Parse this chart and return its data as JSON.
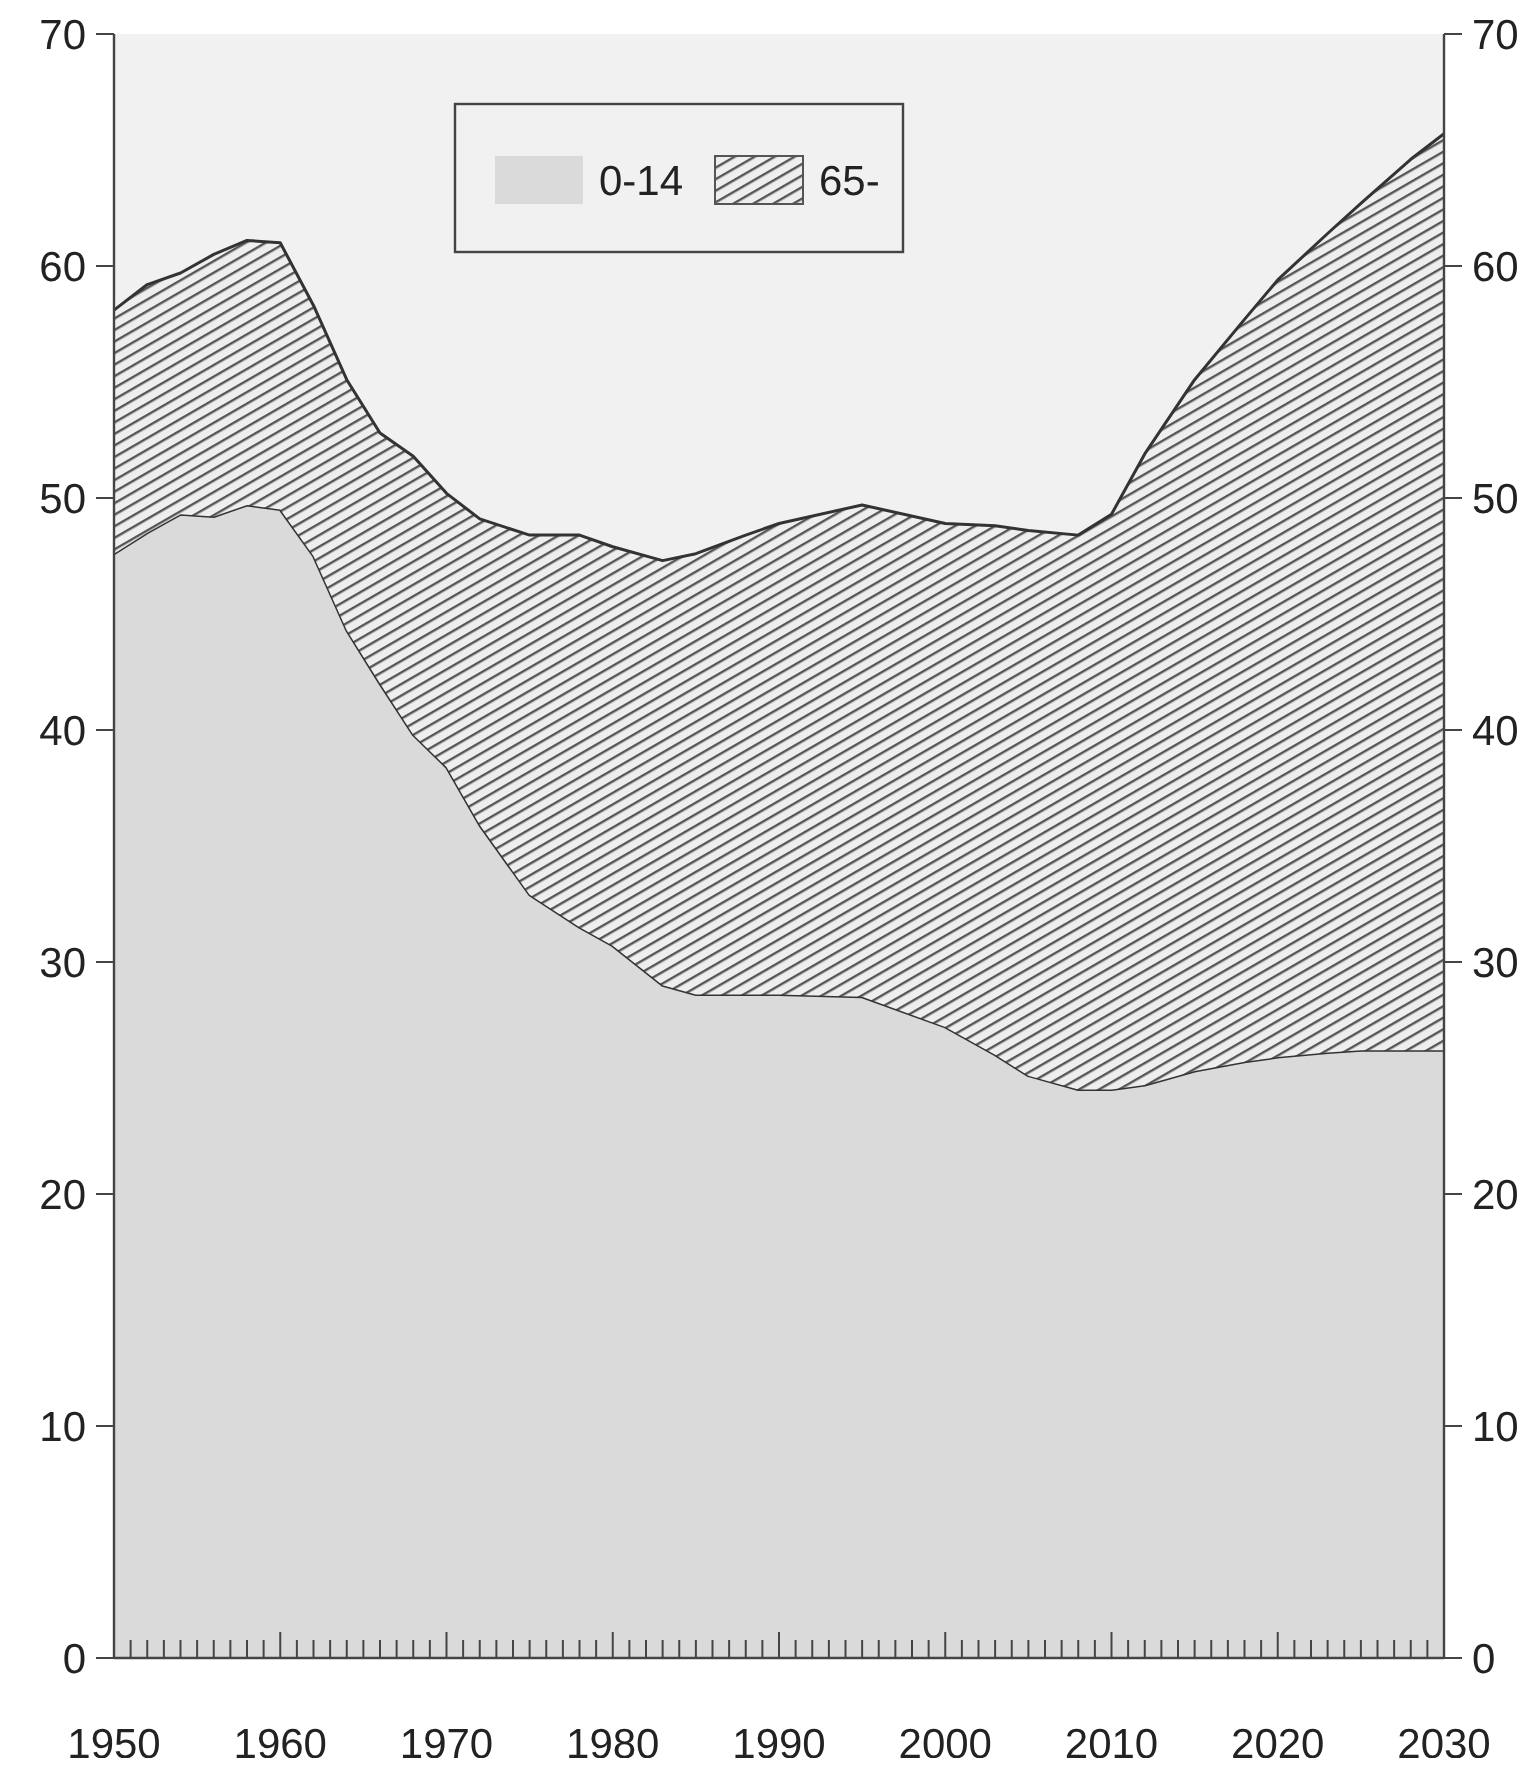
{
  "chart_data": {
    "type": "area",
    "stacked": true,
    "legend": "top",
    "x": [
      1950,
      1952,
      1954,
      1956,
      1958,
      1960,
      1962,
      1964,
      1966,
      1968,
      1970,
      1972,
      1975,
      1978,
      1980,
      1983,
      1985,
      1988,
      1990,
      1995,
      2000,
      2003,
      2005,
      2008,
      2010,
      2012,
      2015,
      2018,
      2020,
      2023,
      2025,
      2028,
      2030
    ],
    "series": [
      {
        "name": "0-14",
        "color": "#dadada",
        "values": [
          47.6,
          48.5,
          49.3,
          49.2,
          49.7,
          49.5,
          47.5,
          44.3,
          42.0,
          39.8,
          38.4,
          35.9,
          32.9,
          31.5,
          30.7,
          29.0,
          28.6,
          28.6,
          28.6,
          28.5,
          27.2,
          26.0,
          25.1,
          24.5,
          24.5,
          24.7,
          25.3,
          25.7,
          25.9,
          26.1,
          26.2,
          26.2,
          26.2
        ]
      },
      {
        "name": "65-",
        "color": "#555555",
        "values": [
          10.5,
          10.7,
          10.4,
          11.3,
          11.4,
          11.5,
          10.8,
          10.8,
          10.8,
          12.0,
          11.8,
          13.2,
          15.5,
          16.9,
          17.2,
          18.3,
          19.0,
          19.8,
          20.3,
          21.2,
          21.7,
          22.8,
          23.5,
          23.9,
          24.8,
          27.2,
          29.8,
          32.0,
          33.5,
          35.3,
          36.5,
          38.4,
          39.5
        ]
      }
    ],
    "xlim": [
      1950,
      2030
    ],
    "xticks": [
      1950,
      {
        "value": 1951,
        "label": null
      },
      {
        "value": 1952,
        "label": null
      },
      {
        "value": 1953,
        "label": null
      },
      {
        "value": 1954,
        "label": null
      },
      {
        "value": 1955,
        "label": null
      },
      {
        "value": 1956,
        "label": null
      },
      {
        "value": 1957,
        "label": null
      },
      {
        "value": 1958,
        "label": null
      },
      {
        "value": 1959,
        "label": null
      },
      1960,
      {
        "value": 1961,
        "label": null
      },
      {
        "value": 1962,
        "label": null
      },
      {
        "value": 1963,
        "label": null
      },
      {
        "value": 1964,
        "label": null
      },
      {
        "value": 1965,
        "label": null
      },
      {
        "value": 1966,
        "label": null
      },
      {
        "value": 1967,
        "label": null
      },
      {
        "value": 1968,
        "label": null
      },
      {
        "value": 1969,
        "label": null
      },
      1970,
      {
        "value": 1971,
        "label": null
      },
      {
        "value": 1972,
        "label": null
      },
      {
        "value": 1973,
        "label": null
      },
      {
        "value": 1974,
        "label": null
      },
      {
        "value": 1975,
        "label": null
      },
      {
        "value": 1976,
        "label": null
      },
      {
        "value": 1977,
        "label": null
      },
      {
        "value": 1978,
        "label": null
      },
      {
        "value": 1979,
        "label": null
      },
      1980,
      {
        "value": 1981,
        "label": null
      },
      {
        "value": 1982,
        "label": null
      },
      {
        "value": 1983,
        "label": null
      },
      {
        "value": 1984,
        "label": null
      },
      {
        "value": 1985,
        "label": null
      },
      {
        "value": 1986,
        "label": null
      },
      {
        "value": 1987,
        "label": null
      },
      {
        "value": 1988,
        "label": null
      },
      {
        "value": 1989,
        "label": null
      },
      1990,
      {
        "value": 1991,
        "label": null
      },
      {
        "value": 1992,
        "label": null
      },
      {
        "value": 1993,
        "label": null
      },
      {
        "value": 1994,
        "label": null
      },
      {
        "value": 1995,
        "label": null
      },
      {
        "value": 1996,
        "label": null
      },
      {
        "value": 1997,
        "label": null
      },
      {
        "value": 1998,
        "label": null
      },
      {
        "value": 1999,
        "label": null
      },
      2000,
      {
        "value": 2001,
        "label": null
      },
      {
        "value": 2002,
        "label": null
      },
      {
        "value": 2003,
        "label": null
      },
      {
        "value": 2004,
        "label": null
      },
      {
        "value": 2005,
        "label": null
      },
      {
        "value": 2006,
        "label": null
      },
      {
        "value": 2007,
        "label": null
      },
      {
        "value": 2008,
        "label": null
      },
      {
        "value": 2009,
        "label": null
      },
      2010,
      {
        "value": 2011,
        "label": null
      },
      {
        "value": 2012,
        "label": null
      },
      {
        "value": 2013,
        "label": null
      },
      {
        "value": 2014,
        "label": null
      },
      {
        "value": 2015,
        "label": null
      },
      {
        "value": 2016,
        "label": null
      },
      {
        "value": 2017,
        "label": null
      },
      {
        "value": 2018,
        "label": null
      },
      {
        "value": 2019,
        "label": null
      },
      2020,
      {
        "value": 2021,
        "label": null
      },
      {
        "value": 2022,
        "label": null
      },
      {
        "value": 2023,
        "label": null
      },
      {
        "value": 2024,
        "label": null
      },
      {
        "value": 2025,
        "label": null
      },
      {
        "value": 2026,
        "label": null
      },
      {
        "value": 2027,
        "label": null
      },
      {
        "value": 2028,
        "label": null
      },
      {
        "value": 2029,
        "label": null
      },
      2030
    ],
    "ylim": [
      0,
      70
    ],
    "yticks": [
      0,
      10,
      20,
      30,
      40,
      50,
      60,
      70
    ],
    "y2lim": [
      0,
      70
    ],
    "y2ticks": [
      0,
      10,
      20,
      30,
      40,
      50,
      60,
      70
    ]
  }
}
